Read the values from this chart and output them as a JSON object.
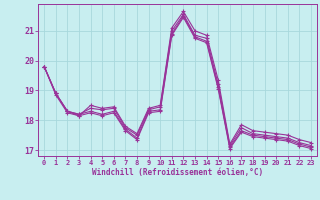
{
  "xlabel": "Windchill (Refroidissement éolien,°C)",
  "background_color": "#c8eef0",
  "grid_color": "#a8d8dc",
  "line_color": "#993399",
  "hours": [
    0,
    1,
    2,
    3,
    4,
    5,
    6,
    7,
    8,
    9,
    10,
    11,
    12,
    13,
    14,
    15,
    16,
    17,
    18,
    19,
    20,
    21,
    22,
    23
  ],
  "series1": [
    19.8,
    18.9,
    18.3,
    18.15,
    18.5,
    18.4,
    18.45,
    17.8,
    17.55,
    18.4,
    18.5,
    21.1,
    21.65,
    21.0,
    20.85,
    19.35,
    17.2,
    17.85,
    17.65,
    17.6,
    17.55,
    17.5,
    17.35,
    17.25
  ],
  "series2": [
    19.8,
    18.9,
    18.3,
    18.2,
    18.4,
    18.35,
    18.4,
    17.75,
    17.5,
    18.35,
    18.45,
    21.0,
    21.55,
    20.85,
    20.75,
    19.2,
    17.15,
    17.75,
    17.55,
    17.5,
    17.45,
    17.4,
    17.25,
    17.15
  ],
  "series3": [
    19.8,
    18.9,
    18.3,
    18.2,
    18.3,
    18.2,
    18.3,
    17.7,
    17.4,
    18.3,
    18.35,
    20.9,
    21.5,
    20.8,
    20.65,
    19.1,
    17.1,
    17.65,
    17.5,
    17.45,
    17.4,
    17.35,
    17.2,
    17.1
  ],
  "series4": [
    19.8,
    18.85,
    18.25,
    18.15,
    18.25,
    18.15,
    18.25,
    17.65,
    17.35,
    18.25,
    18.3,
    20.85,
    21.45,
    20.75,
    20.6,
    19.05,
    17.05,
    17.6,
    17.45,
    17.4,
    17.35,
    17.3,
    17.15,
    17.05
  ],
  "xlim": [
    -0.5,
    23.5
  ],
  "ylim": [
    16.8,
    21.9
  ],
  "yticks": [
    17,
    18,
    19,
    20,
    21
  ],
  "xticks": [
    0,
    1,
    2,
    3,
    4,
    5,
    6,
    7,
    8,
    9,
    10,
    11,
    12,
    13,
    14,
    15,
    16,
    17,
    18,
    19,
    20,
    21,
    22,
    23
  ]
}
